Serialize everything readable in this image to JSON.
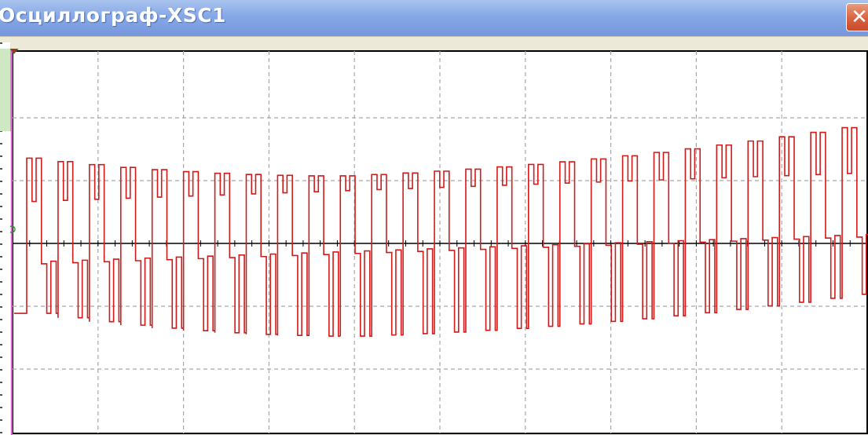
{
  "window": {
    "title": "Осциллограф-XSC1",
    "close_glyph": "✕"
  },
  "icons": {
    "close": "close-icon",
    "cursor_marker": "trigger-marker-icon",
    "channel_marker": "channel-a-marker-icon"
  },
  "colors": {
    "titlebar": "#86a8e6",
    "close_button": "#d9623f",
    "trace": "#d11a1a",
    "axis": "#000000",
    "grid": "#a8a8a8",
    "screen": "#ffffff",
    "cursor_line": "#e05ad8"
  },
  "waveform": {
    "description_type": "chopped sinusoidal pulse train",
    "upper_envelope": {
      "start_level": 0.67,
      "min_level": 0.53,
      "end_level": 0.91
    },
    "lower_envelope": {
      "start_level": -0.55,
      "min_level": -0.73,
      "end_level": -0.4
    },
    "upper_notch_level": {
      "start": 0.33,
      "end": 0.55
    },
    "lower_notch_level": {
      "start": -0.16,
      "end": 0.05
    },
    "pulse_count": 27
  }
}
